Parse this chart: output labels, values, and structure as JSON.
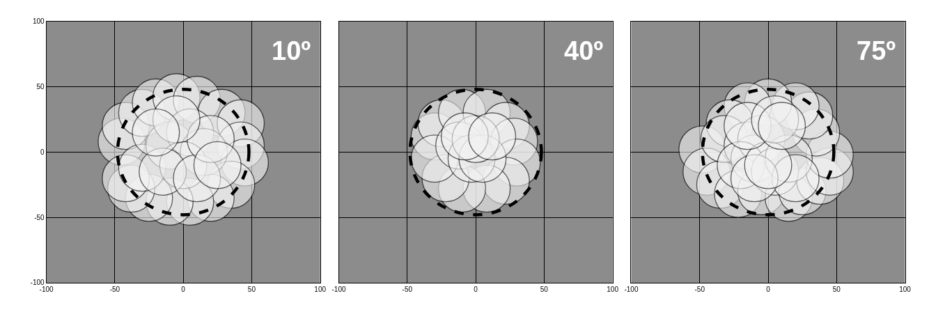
{
  "chart_data": [
    {
      "type": "bubble",
      "annotations": [
        "10º"
      ],
      "xlim": [
        -100,
        100
      ],
      "ylim": [
        -100,
        100
      ],
      "xticks": [
        -100,
        -50,
        0,
        50,
        100
      ],
      "yticks": [
        -100,
        -50,
        0,
        50,
        100
      ],
      "grid": true,
      "series": [
        {
          "color": "#f2f2f2",
          "x": [
            -45,
            -42,
            -30,
            -20,
            -5,
            10,
            28,
            42,
            42,
            45,
            35,
            20,
            5,
            -10,
            -25,
            -38,
            -42,
            -30,
            -10,
            5,
            15,
            0,
            -15,
            10,
            20,
            -5,
            25,
            -20
          ],
          "values": [
            8,
            20,
            30,
            38,
            42,
            40,
            30,
            22,
            5,
            -8,
            -25,
            -35,
            -38,
            -38,
            -35,
            -28,
            -20,
            -12,
            5,
            15,
            0,
            -10,
            -15,
            -20,
            10,
            25,
            -10,
            15
          ],
          "sizes": [
            1,
            1,
            1,
            1,
            1,
            1,
            1,
            1,
            1,
            1,
            1,
            1,
            1,
            1,
            1,
            1,
            1,
            1,
            1,
            1,
            1,
            1,
            1,
            1,
            1,
            1,
            1,
            1
          ]
        }
      ]
    },
    {
      "type": "bubble",
      "annotations": [
        "40º"
      ],
      "xlim": [
        -100,
        100
      ],
      "ylim": [
        -100,
        100
      ],
      "xticks": [
        -100,
        -50,
        0,
        50,
        100
      ],
      "yticks": [
        -100,
        -50,
        0,
        50,
        100
      ],
      "grid": true,
      "tick_labels": "x",
      "series": [
        {
          "color": "#f2f2f2",
          "x": [
            -30,
            -25,
            -10,
            8,
            22,
            28,
            30,
            22,
            8,
            -10,
            -22,
            -30,
            -12,
            -3,
            5,
            0,
            -8,
            12
          ],
          "values": [
            12,
            22,
            30,
            30,
            20,
            8,
            -8,
            -22,
            -28,
            -28,
            -20,
            -5,
            5,
            -5,
            -5,
            10,
            12,
            12
          ],
          "sizes": [
            1,
            1,
            1,
            1,
            1,
            1,
            1,
            1,
            1,
            1,
            1,
            1,
            1,
            1,
            1,
            1,
            1,
            1
          ]
        }
      ]
    },
    {
      "type": "bubble",
      "annotations": [
        "75º"
      ],
      "xlim": [
        -100,
        100
      ],
      "ylim": [
        -100,
        100
      ],
      "xticks": [
        -100,
        -50,
        0,
        50,
        100
      ],
      "yticks": [
        -100,
        -50,
        0,
        50,
        100
      ],
      "grid": true,
      "tick_labels": "x",
      "series": [
        {
          "color": "#f2f2f2",
          "x": [
            -48,
            -45,
            -35,
            -22,
            -5,
            15,
            25,
            38,
            45,
            45,
            35,
            30,
            20,
            0,
            -15,
            -28,
            -32,
            -15,
            -10,
            -5,
            -20,
            5,
            15,
            20,
            -10,
            0,
            -15,
            5,
            10
          ],
          "values": [
            2,
            -15,
            -25,
            -32,
            -30,
            -35,
            -30,
            -22,
            -15,
            -2,
            15,
            28,
            35,
            38,
            35,
            22,
            10,
            5,
            -5,
            10,
            -10,
            -15,
            -5,
            -20,
            -20,
            -10,
            20,
            25,
            20
          ],
          "sizes": [
            1,
            1,
            1,
            1,
            1,
            1,
            1,
            1,
            1,
            1,
            1,
            1,
            1,
            1,
            1,
            1,
            1,
            1,
            1,
            1,
            1,
            1,
            1,
            1,
            1,
            1,
            1,
            1,
            1
          ]
        }
      ]
    }
  ]
}
